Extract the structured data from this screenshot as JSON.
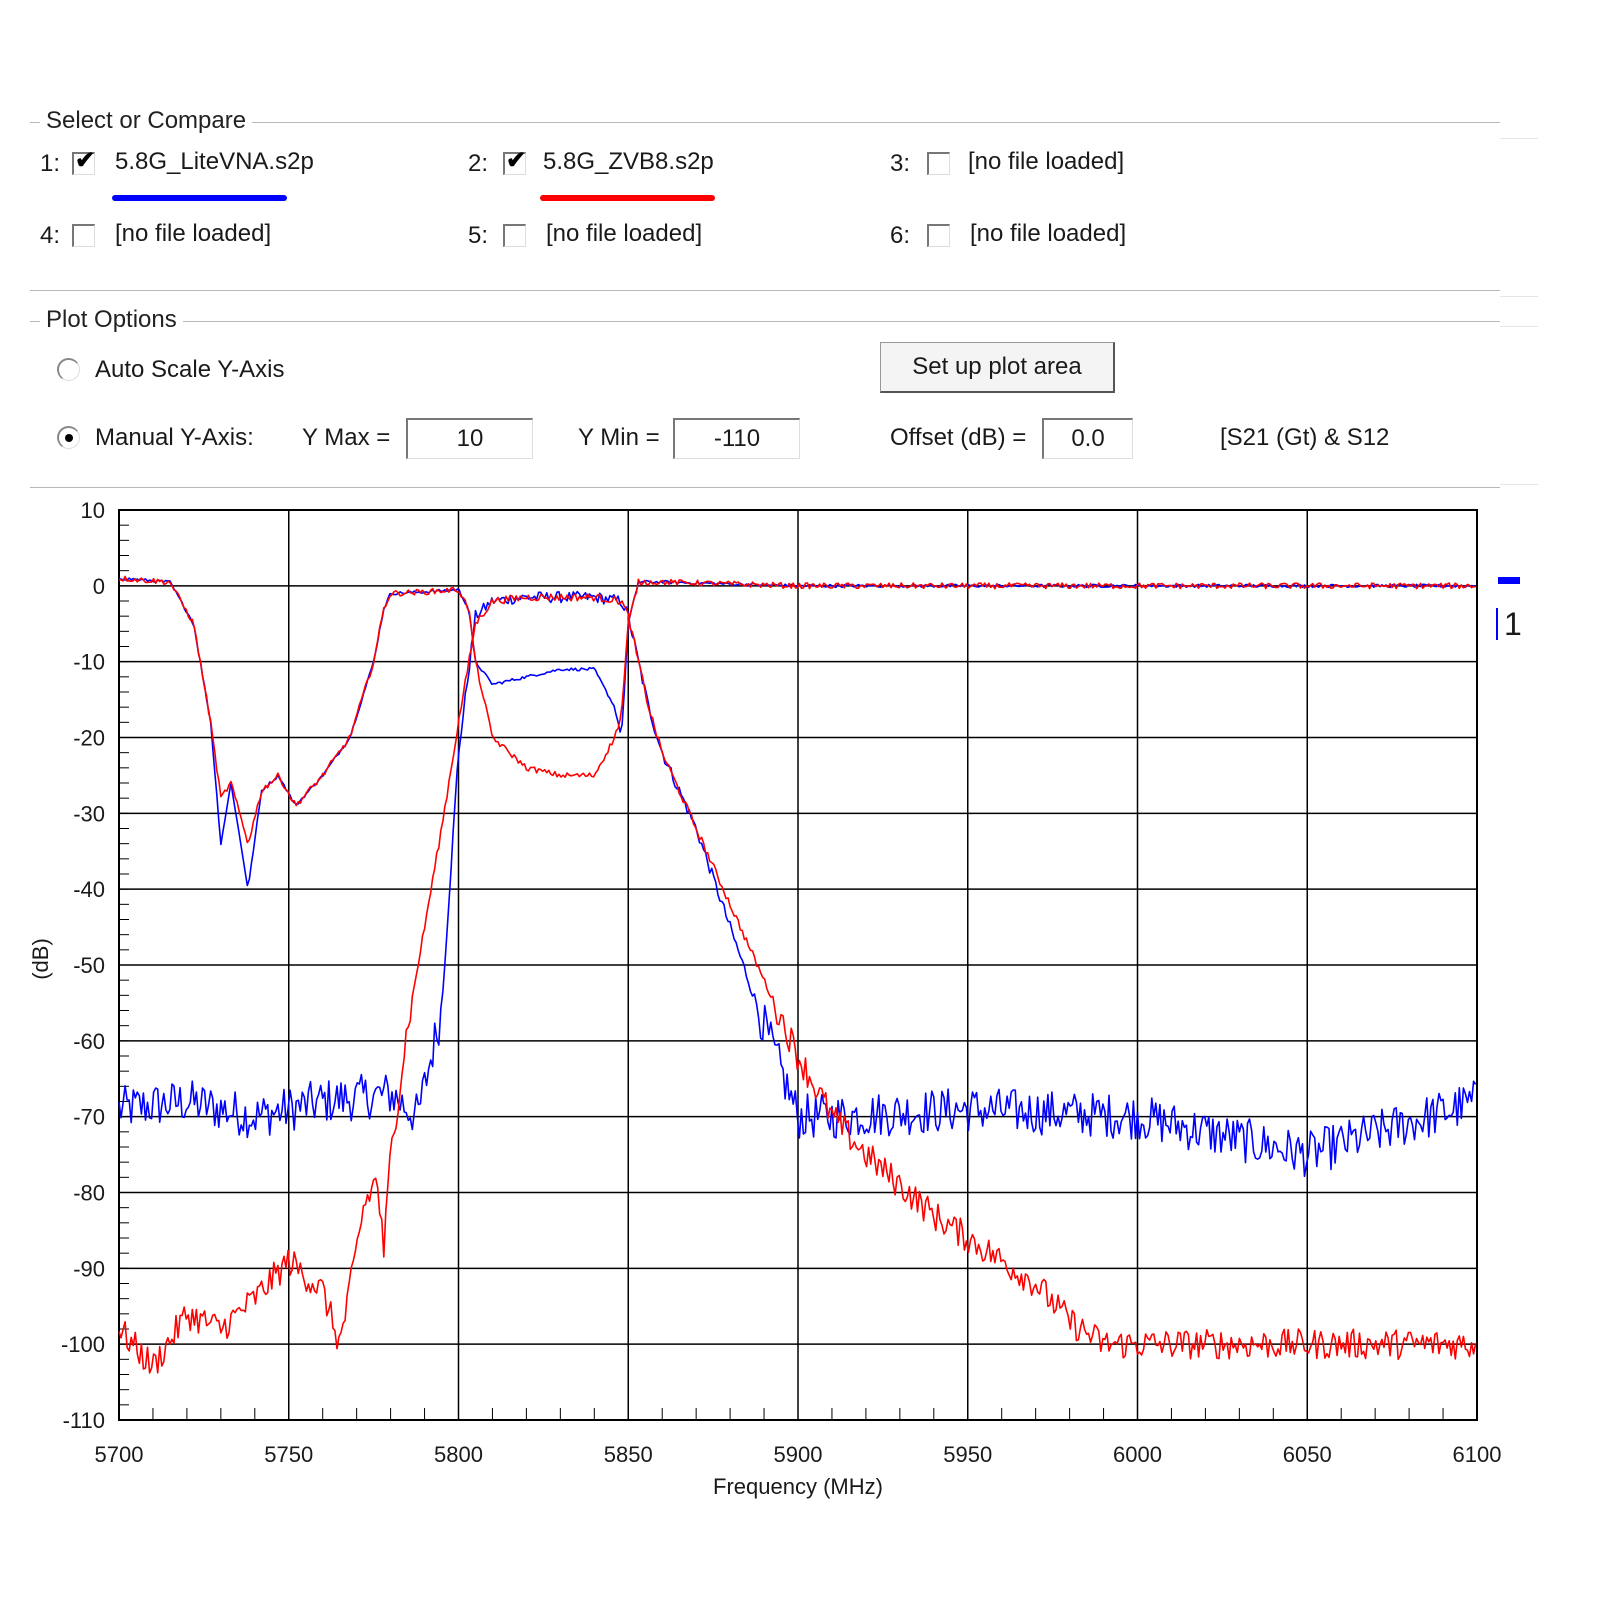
{
  "select_group": {
    "title": "Select or Compare",
    "files": [
      {
        "index": "1:",
        "checked": true,
        "name": "5.8G_LiteVNA.s2p",
        "color": "#0000ff"
      },
      {
        "index": "2:",
        "checked": true,
        "name": "5.8G_ZVB8.s2p",
        "color": "#ff0000"
      },
      {
        "index": "3:",
        "checked": false,
        "name": "[no file loaded]"
      },
      {
        "index": "4:",
        "checked": false,
        "name": "[no file loaded]"
      },
      {
        "index": "5:",
        "checked": false,
        "name": "[no file loaded]"
      },
      {
        "index": "6:",
        "checked": false,
        "name": "[no file loaded]"
      }
    ],
    "check_glyph": "✔"
  },
  "plot_options": {
    "title": "Plot Options",
    "auto_scale_label": "Auto Scale Y-Axis",
    "manual_label": "Manual Y-Axis:",
    "selected_mode": "manual",
    "setup_button": "Set up plot area",
    "ymax_label": "Y Max =",
    "ymax_value": "10",
    "ymin_label": "Y Min =",
    "ymin_value": "-110",
    "offset_label": "Offset (dB) =",
    "offset_value": "0.0",
    "param_label": "[S21 (Gt) & S12"
  },
  "legend_fragment": "1",
  "chart_data": {
    "type": "line",
    "xlabel": "Frequency (MHz)",
    "ylabel": "(dB)",
    "xlim": [
      5700,
      6100
    ],
    "ylim": [
      -110,
      10
    ],
    "x_ticks": [
      "5700",
      "5750",
      "5800",
      "5850",
      "5900",
      "5950",
      "6000",
      "6050",
      "6100"
    ],
    "y_ticks": [
      "10",
      "0",
      "-10",
      "-20",
      "-30",
      "-40",
      "-50",
      "-60",
      "-70",
      "-80",
      "-90",
      "-100",
      "-110"
    ],
    "grid": true,
    "series": [
      {
        "name": "5.8G_LiteVNA.s2p",
        "trace": "S21",
        "color": "#0000ff",
        "x": [
          5700,
          5720,
          5740,
          5760,
          5780,
          5788,
          5792,
          5795,
          5800,
          5805,
          5810,
          5820,
          5830,
          5840,
          5848,
          5850,
          5853,
          5856,
          5860,
          5870,
          5880,
          5890,
          5900,
          5910,
          5950,
          6000,
          6050,
          6100
        ],
        "y": [
          -69,
          -68,
          -70,
          -68,
          -67,
          -70,
          -62,
          -56,
          -22,
          -4,
          -2,
          -1.5,
          -1.5,
          -1.5,
          -2,
          -4,
          -10,
          -16,
          -22,
          -32,
          -45,
          -58,
          -70,
          -70,
          -69,
          -70,
          -75,
          -68
        ],
        "noise": 3
      },
      {
        "name": "5.8G_LiteVNA.s2p",
        "trace": "S12",
        "color": "#0000ff",
        "x": [
          5700,
          5715,
          5722,
          5727,
          5730,
          5733,
          5738,
          5742,
          5747,
          5752,
          5760,
          5768,
          5775,
          5778,
          5780,
          5790,
          5800,
          5803,
          5805,
          5810,
          5820,
          5830,
          5840,
          5846,
          5848,
          5850,
          5853,
          5860,
          5900,
          6100
        ],
        "y": [
          1,
          0.5,
          -5,
          -18,
          -34,
          -26,
          -40,
          -27,
          -25,
          -29,
          -25,
          -20,
          -10,
          -3,
          -1,
          -0.8,
          -0.5,
          -3,
          -10,
          -13,
          -12,
          -11,
          -11,
          -16,
          -20,
          -5,
          0.5,
          0.5,
          0,
          0
        ],
        "noise": 0.8
      },
      {
        "name": "5.8G_ZVB8.s2p",
        "trace": "S21",
        "color": "#ff0000",
        "x": [
          5700,
          5710,
          5720,
          5730,
          5740,
          5750,
          5755,
          5760,
          5765,
          5768,
          5772,
          5776,
          5778,
          5780,
          5785,
          5790,
          5795,
          5800,
          5805,
          5810,
          5820,
          5830,
          5840,
          5848,
          5850,
          5853,
          5856,
          5860,
          5870,
          5880,
          5890,
          5900,
          5910,
          5920,
          5930,
          5940,
          5950,
          5960,
          5970,
          5980,
          5990,
          6000,
          6050,
          6100
        ],
        "y": [
          -98,
          -103,
          -96,
          -98,
          -94,
          -89,
          -91,
          -93,
          -100,
          -93,
          -82,
          -78,
          -88,
          -75,
          -58,
          -45,
          -32,
          -18,
          -5,
          -2,
          -1.5,
          -1.5,
          -1.5,
          -2,
          -4,
          -10,
          -16,
          -22,
          -32,
          -42,
          -52,
          -62,
          -70,
          -75,
          -79,
          -83,
          -86,
          -89,
          -92,
          -97,
          -100,
          -100,
          -100,
          -100
        ],
        "noise": 2
      },
      {
        "name": "5.8G_ZVB8.s2p",
        "trace": "S12",
        "color": "#ff0000",
        "x": [
          5700,
          5715,
          5722,
          5727,
          5730,
          5733,
          5738,
          5742,
          5747,
          5752,
          5760,
          5768,
          5775,
          5778,
          5780,
          5790,
          5800,
          5803,
          5805,
          5810,
          5820,
          5830,
          5840,
          5846,
          5848,
          5850,
          5853,
          5860,
          5900,
          6100
        ],
        "y": [
          1,
          0.5,
          -5,
          -18,
          -28,
          -26,
          -34,
          -27,
          -25,
          -29,
          -25,
          -20,
          -10,
          -3,
          -1,
          -0.8,
          -0.5,
          -3,
          -10,
          -20,
          -24,
          -25,
          -25,
          -20,
          -17,
          -5,
          0.5,
          0.5,
          0,
          0
        ],
        "noise": 1.5
      }
    ]
  }
}
